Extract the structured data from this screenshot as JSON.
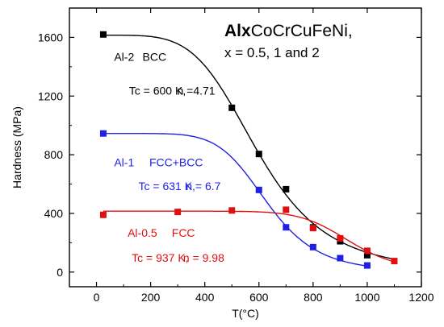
{
  "chart_data": {
    "type": "scatter",
    "title_bold": "Alx",
    "title_rest": "CoCrCuFeNi,",
    "subtitle": "x = 0.5, 1 and 2",
    "xlabel": "T(°C)",
    "ylabel": "Hardness (MPa)",
    "xlim": [
      -100,
      1200
    ],
    "ylim": [
      -100,
      1800
    ],
    "xticks": [
      0,
      200,
      400,
      600,
      800,
      1000,
      1200
    ],
    "yticks": [
      0,
      400,
      800,
      1200,
      1600
    ],
    "series": [
      {
        "color": "#000000",
        "points": [
          [
            25,
            1620
          ],
          [
            500,
            1120
          ],
          [
            600,
            805
          ],
          [
            700,
            565
          ],
          [
            800,
            305
          ],
          [
            900,
            210
          ],
          [
            1000,
            115
          ]
        ],
        "fit": {
          "h0": 1615,
          "tc": 600,
          "n": 4.71,
          "tmax": 1100
        },
        "labels": [
          {
            "text": "Al-2",
            "x": 65,
            "y": 1440
          },
          {
            "text": "BCC",
            "x": 170,
            "y": 1440
          },
          {
            "text": "Tc = 600 K,",
            "x": 120,
            "y": 1210
          },
          {
            "text": "n =4.71",
            "x": 298,
            "y": 1210
          }
        ]
      },
      {
        "color": "#1f1fe6",
        "points": [
          [
            25,
            945
          ],
          [
            600,
            560
          ],
          [
            700,
            305
          ],
          [
            800,
            170
          ],
          [
            900,
            95
          ],
          [
            1000,
            45
          ]
        ],
        "fit": {
          "h0": 945,
          "tc": 631,
          "n": 6.7,
          "tmax": 1000
        },
        "labels": [
          {
            "text": "Al-1",
            "x": 65,
            "y": 720
          },
          {
            "text": "FCC+BCC",
            "x": 195,
            "y": 720
          },
          {
            "text": "Tc = 631 K,",
            "x": 155,
            "y": 560
          },
          {
            "text": "n = 6.7",
            "x": 330,
            "y": 560
          }
        ]
      },
      {
        "color": "#e01010",
        "points": [
          [
            25,
            390
          ],
          [
            300,
            410
          ],
          [
            500,
            420
          ],
          [
            700,
            425
          ],
          [
            800,
            300
          ],
          [
            900,
            230
          ],
          [
            1000,
            145
          ],
          [
            1100,
            75
          ]
        ],
        "fit": {
          "h0": 415,
          "tc": 937,
          "n": 9.98,
          "tmax": 1100
        },
        "labels": [
          {
            "text": "Al-0.5",
            "x": 115,
            "y": 240
          },
          {
            "text": "FCC",
            "x": 278,
            "y": 240
          },
          {
            "text": "Tc = 937 K,",
            "x": 130,
            "y": 70
          },
          {
            "text": "n = 9.98",
            "x": 320,
            "y": 70
          }
        ]
      }
    ]
  }
}
